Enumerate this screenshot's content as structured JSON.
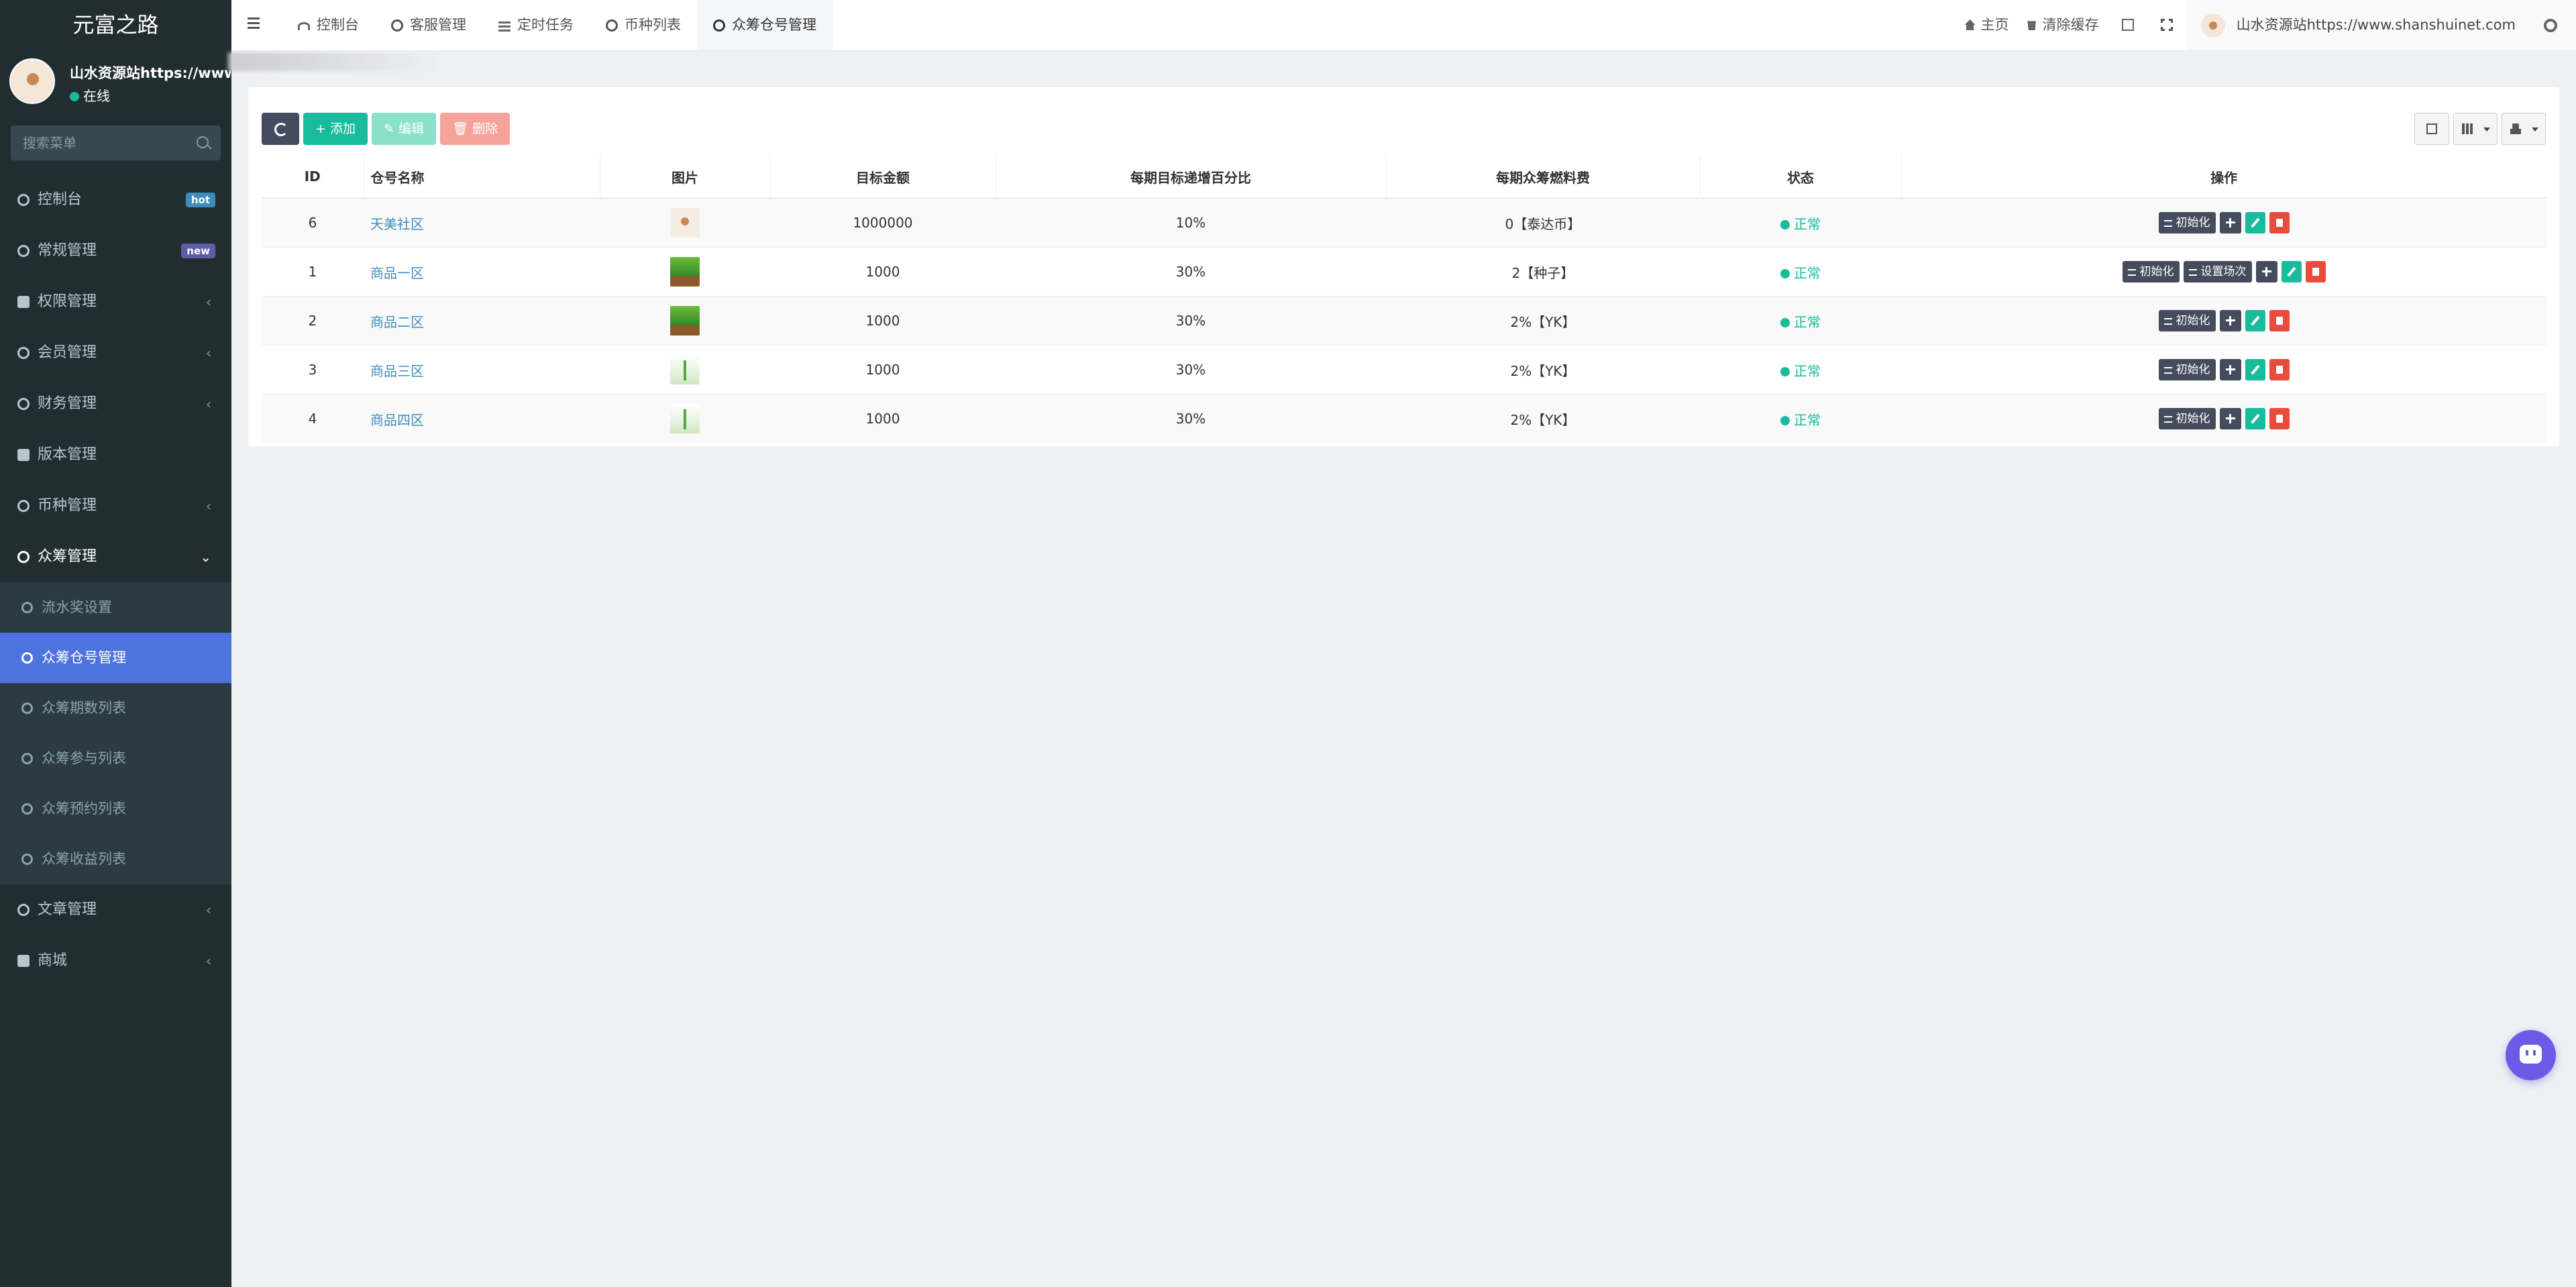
{
  "sidebar": {
    "brand": "元富之路",
    "user": {
      "name": "山水资源站https://www.shanshuinet.com",
      "status": "在线"
    },
    "search_placeholder": "搜索菜单",
    "items": [
      {
        "label": "控制台",
        "badge": "hot"
      },
      {
        "label": "常规管理",
        "badge": "new"
      },
      {
        "label": "权限管理",
        "chevron": "‹"
      },
      {
        "label": "会员管理",
        "chevron": "‹"
      },
      {
        "label": "财务管理",
        "chevron": "‹"
      },
      {
        "label": "版本管理"
      },
      {
        "label": "币种管理",
        "chevron": "‹"
      },
      {
        "label": "众筹管理",
        "chevron": "⌄"
      },
      {
        "label": "文章管理",
        "chevron": "‹"
      },
      {
        "label": "商城",
        "chevron": "‹"
      }
    ],
    "submenu": [
      {
        "label": "流水奖设置"
      },
      {
        "label": "众筹仓号管理"
      },
      {
        "label": "众筹期数列表"
      },
      {
        "label": "众筹参与列表"
      },
      {
        "label": "众筹预约列表"
      },
      {
        "label": "众筹收益列表"
      }
    ]
  },
  "header": {
    "tabs": [
      {
        "label": "控制台"
      },
      {
        "label": "客服管理"
      },
      {
        "label": "定时任务"
      },
      {
        "label": "币种列表"
      },
      {
        "label": "众筹仓号管理"
      }
    ],
    "home_label": "主页",
    "clear_cache_label": "清除缓存",
    "user_label": "山水资源站https://www.shanshuinet.com"
  },
  "toolbar": {
    "add": "添加",
    "edit": "编辑",
    "delete": "删除"
  },
  "table": {
    "columns": [
      "ID",
      "仓号名称",
      "图片",
      "目标金额",
      "每期目标递增百分比",
      "每期众筹燃料费",
      "状态",
      "操作"
    ],
    "rows": [
      {
        "id": "6",
        "name": "天美社区",
        "image": "logo",
        "target": "1000000",
        "increase": "10%",
        "fuel": "0【泰达币】",
        "status": "正常",
        "actions": [
          "初始化"
        ]
      },
      {
        "id": "1",
        "name": "商品一区",
        "image": "tree",
        "target": "1000",
        "increase": "30%",
        "fuel": "2【种子】",
        "status": "正常",
        "actions": [
          "初始化",
          "设置场次"
        ]
      },
      {
        "id": "2",
        "name": "商品二区",
        "image": "tree",
        "target": "1000",
        "increase": "30%",
        "fuel": "2%【YK】",
        "status": "正常",
        "actions": [
          "初始化"
        ]
      },
      {
        "id": "3",
        "name": "商品三区",
        "image": "herb",
        "target": "1000",
        "increase": "30%",
        "fuel": "2%【YK】",
        "status": "正常",
        "actions": [
          "初始化"
        ]
      },
      {
        "id": "4",
        "name": "商品四区",
        "image": "herb",
        "target": "1000",
        "increase": "30%",
        "fuel": "2%【YK】",
        "status": "正常",
        "actions": [
          "初始化"
        ]
      }
    ]
  },
  "colors": {
    "sidebar_bg": "#222d32",
    "accent_active": "#4e73df",
    "success": "#18bc9c",
    "danger": "#e74c3c",
    "link": "#3c8dbc"
  },
  "icons": {
    "chat": "chat-bubble-icon"
  }
}
